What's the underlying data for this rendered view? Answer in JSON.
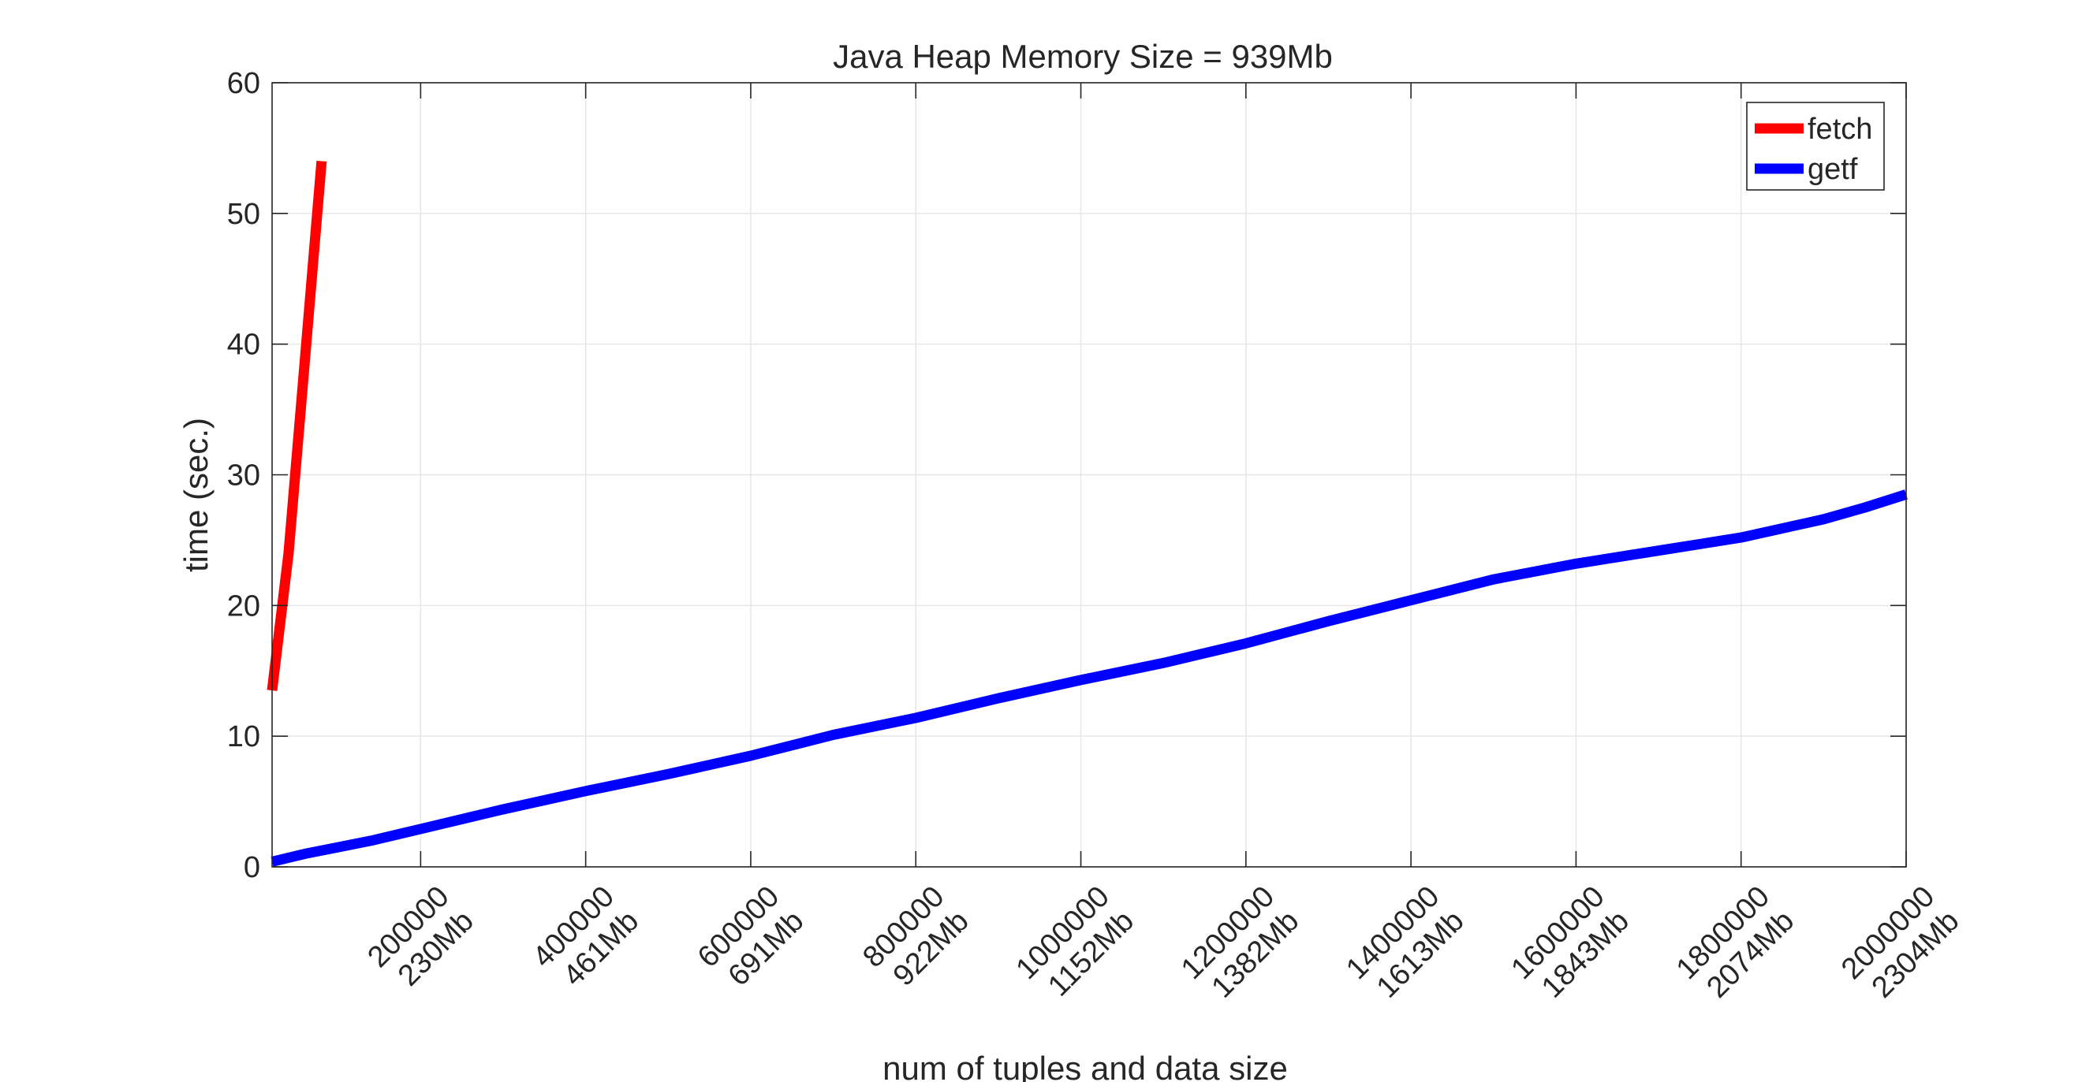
{
  "chart_data": {
    "type": "line",
    "title": "Java Heap Memory Size = 939Mb",
    "xlabel": "num of tuples and data size",
    "ylabel": "time (sec.)",
    "xlim": [
      20000,
      2000000
    ],
    "ylim": [
      0,
      60
    ],
    "grid": true,
    "legend_position": "top-right",
    "x_ticks": [
      {
        "value": 200000,
        "label": "200000",
        "sublabel": "230Mb"
      },
      {
        "value": 400000,
        "label": "400000",
        "sublabel": "461Mb"
      },
      {
        "value": 600000,
        "label": "600000",
        "sublabel": "691Mb"
      },
      {
        "value": 800000,
        "label": "800000",
        "sublabel": "922Mb"
      },
      {
        "value": 1000000,
        "label": "1000000",
        "sublabel": "1152Mb"
      },
      {
        "value": 1200000,
        "label": "1200000",
        "sublabel": "1382Mb"
      },
      {
        "value": 1400000,
        "label": "1400000",
        "sublabel": "1613Mb"
      },
      {
        "value": 1600000,
        "label": "1600000",
        "sublabel": "1843Mb"
      },
      {
        "value": 1800000,
        "label": "1800000",
        "sublabel": "2074Mb"
      },
      {
        "value": 2000000,
        "label": "2000000",
        "sublabel": "2304Mb"
      }
    ],
    "y_ticks": [
      {
        "value": 0,
        "label": "0"
      },
      {
        "value": 10,
        "label": "10"
      },
      {
        "value": 20,
        "label": "20"
      },
      {
        "value": 30,
        "label": "30"
      },
      {
        "value": 40,
        "label": "40"
      },
      {
        "value": 50,
        "label": "50"
      },
      {
        "value": 60,
        "label": "60"
      }
    ],
    "series": [
      {
        "name": "fetch",
        "color": "#ff0000",
        "x": [
          20000,
          40000,
          60000,
          80000
        ],
        "y": [
          13.5,
          24,
          39,
          54
        ]
      },
      {
        "name": "getf",
        "color": "#0000ff",
        "x": [
          20000,
          60000,
          100000,
          140000,
          200000,
          300000,
          400000,
          500000,
          600000,
          700000,
          800000,
          900000,
          1000000,
          1100000,
          1200000,
          1300000,
          1400000,
          1500000,
          1600000,
          1700000,
          1800000,
          1900000,
          1950000,
          2000000
        ],
        "y": [
          0.4,
          1.0,
          1.5,
          2.0,
          2.9,
          4.4,
          5.8,
          7.1,
          8.5,
          10.1,
          11.4,
          12.9,
          14.3,
          15.6,
          17.1,
          18.8,
          20.4,
          22.0,
          23.2,
          24.2,
          25.2,
          26.6,
          27.5,
          28.5
        ]
      }
    ]
  }
}
